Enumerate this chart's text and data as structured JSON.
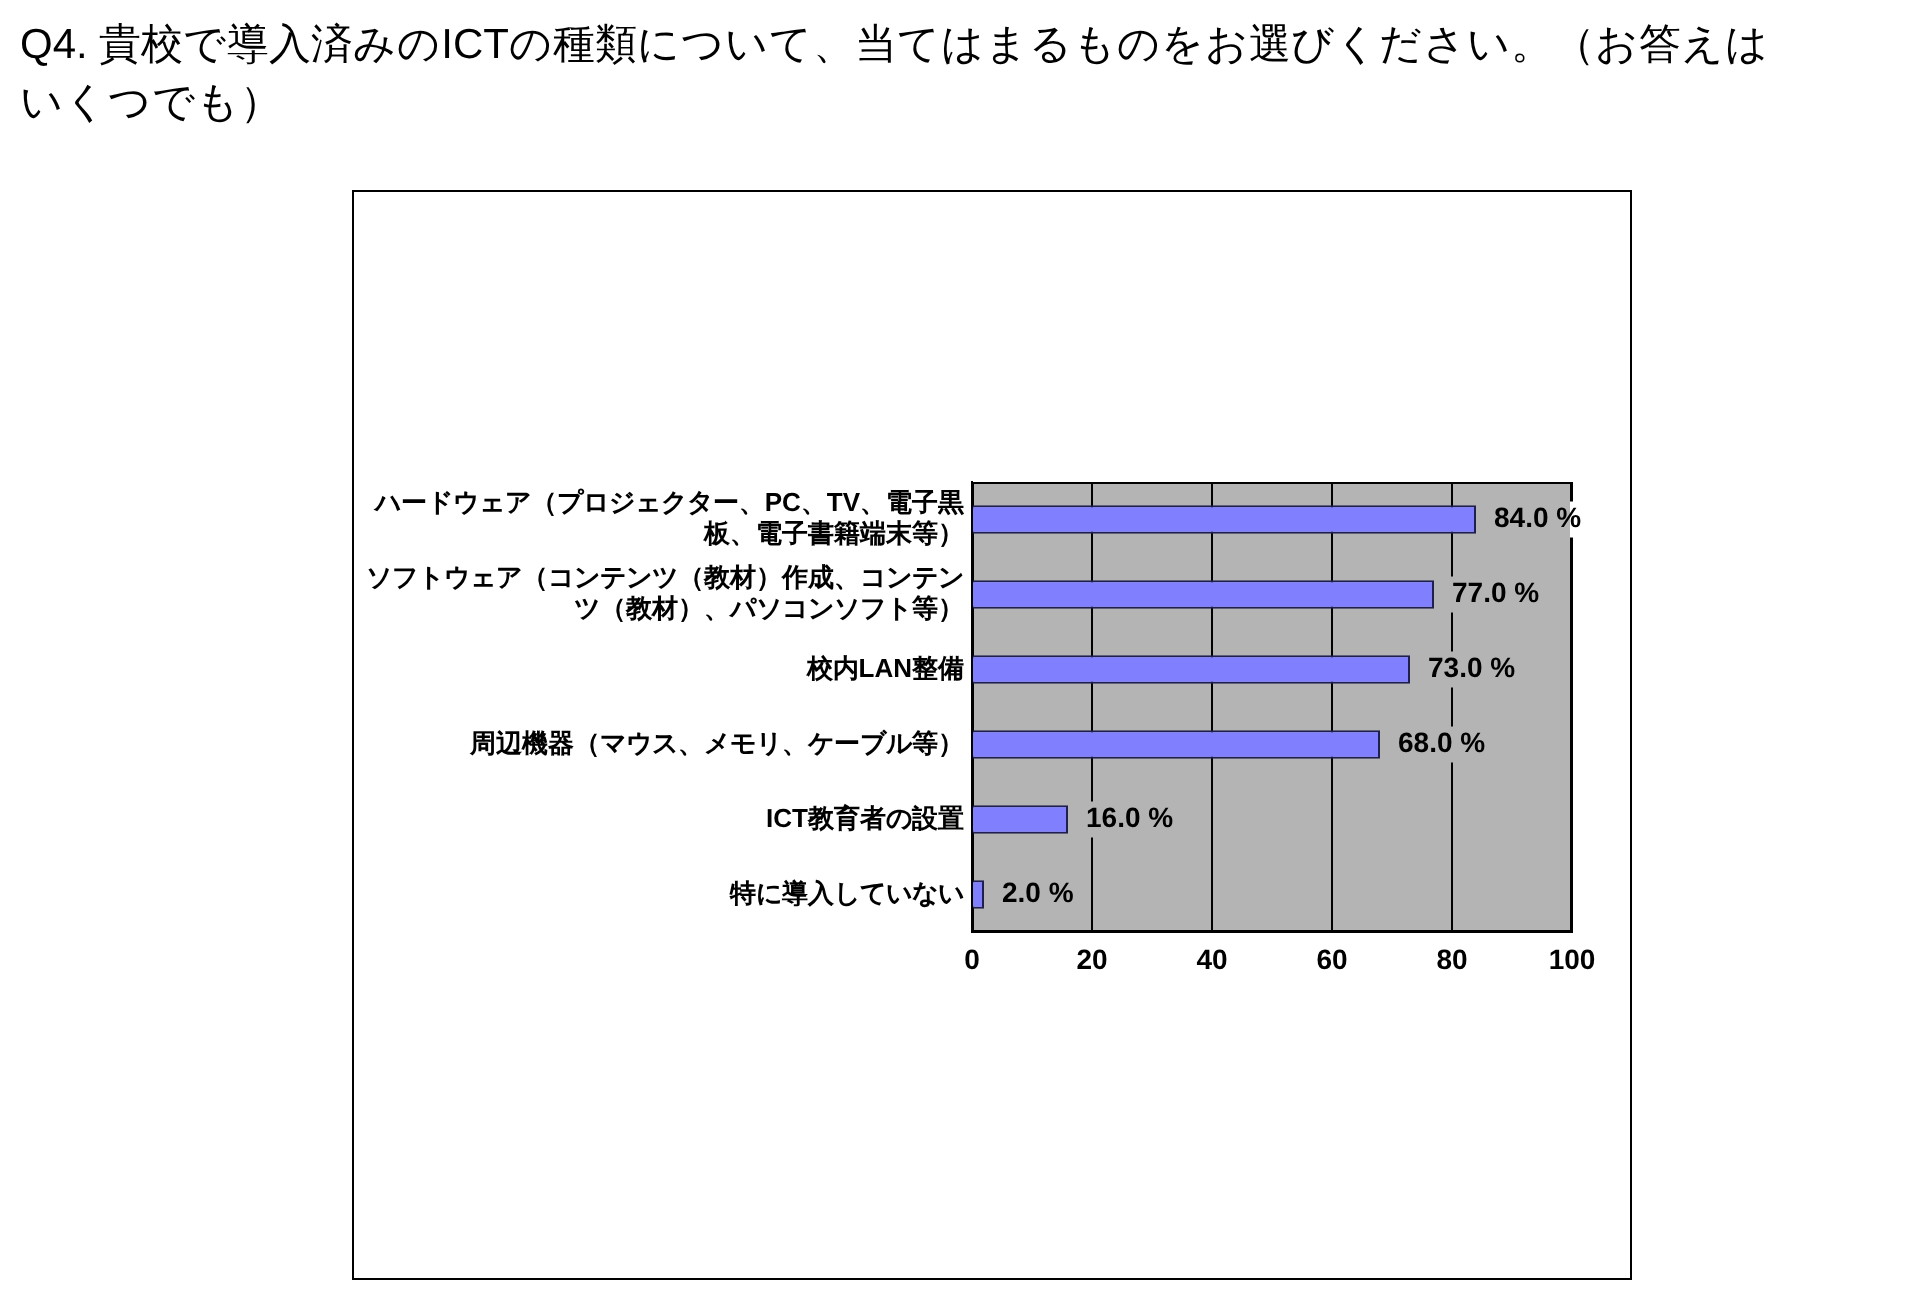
{
  "chart_data": {
    "type": "bar",
    "orientation": "horizontal",
    "title": "Q4. 貴校で導入済みのICTの種類について、当てはまるものをお選びください。（お答えはいくつでも）",
    "categories": [
      "ハードウェア（プロジェクター、PC、TV、電子黒板、電子書籍端末等）",
      "ソフトウェア（コンテンツ（教材）作成、コンテンツ（教材）、パソコンソフト等）",
      "校内LAN整備",
      "周辺機器（マウス、メモリ、ケーブル等）",
      "ICT教育者の設置",
      "特に導入していない"
    ],
    "values": [
      84,
      77,
      73,
      68,
      16,
      2
    ],
    "value_labels": [
      "84.0 %",
      "77.0 %",
      "73.0 %",
      "68.0 %",
      "16.0 %",
      "2.0 %"
    ],
    "color": "#8080ff",
    "xlim": [
      0,
      100
    ],
    "xticks": [
      0,
      20,
      40,
      60,
      80,
      100
    ],
    "grid": "x",
    "legend": false
  }
}
